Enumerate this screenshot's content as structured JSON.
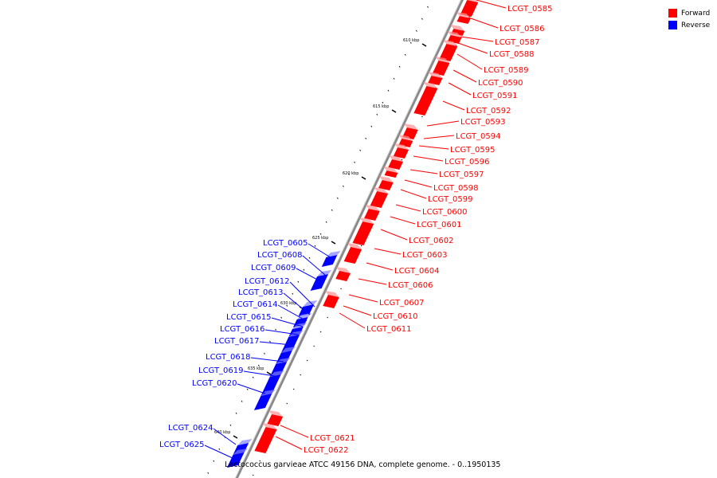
{
  "caption": "Lactococcus garvieae ATCC 49156 DNA, complete genome. - 0..1950135",
  "legend": {
    "forward_label": "Forward",
    "reverse_label": "Reverse",
    "forward_color": "#ff0000",
    "reverse_color": "#0000ff"
  },
  "kbp_labels": [
    "610 kbp",
    "615 kbp",
    "620 kbp",
    "625 kbp",
    "630 kbp",
    "635 kbp",
    "640 kbp"
  ],
  "forward_genes": [
    "LCGT_0585",
    "LCGT_0586",
    "LCGT_0587",
    "LCGT_0588",
    "LCGT_0589",
    "LCGT_0590",
    "LCGT_0591",
    "LCGT_0592",
    "LCGT_0593",
    "LCGT_0594",
    "LCGT_0595",
    "LCGT_0596",
    "LCGT_0597",
    "LCGT_0598",
    "LCGT_0599",
    "LCGT_0600",
    "LCGT_0601",
    "LCGT_0602",
    "LCGT_0603",
    "LCGT_0604",
    "LCGT_0606",
    "LCGT_0607",
    "LCGT_0610",
    "LCGT_0611",
    "LCGT_0621",
    "LCGT_0622"
  ],
  "reverse_genes": [
    "LCGT_0605",
    "LCGT_0608",
    "LCGT_0609",
    "LCGT_0612",
    "LCGT_0613",
    "LCGT_0614",
    "LCGT_0615",
    "LCGT_0616",
    "LCGT_0617",
    "LCGT_0618",
    "LCGT_0619",
    "LCGT_0620",
    "LCGT_0624",
    "LCGT_0625"
  ]
}
